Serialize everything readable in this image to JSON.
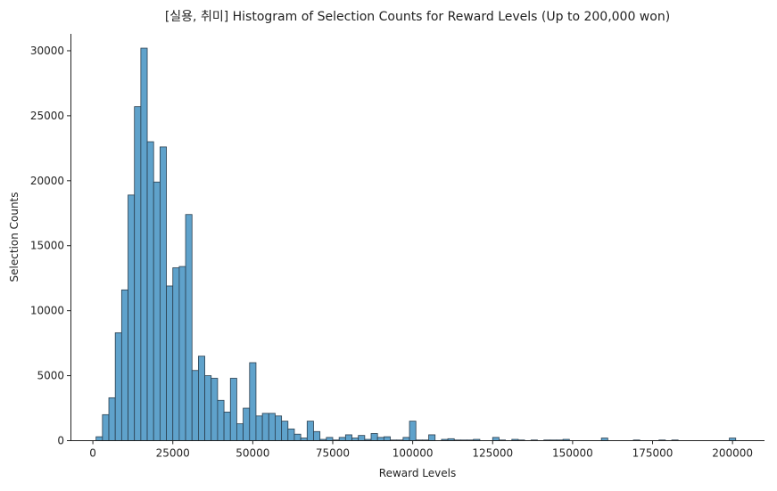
{
  "chart_data": {
    "type": "bar",
    "title": "[실용, 취미] Histogram of Selection Counts for Reward Levels (Up to 200,000 won)",
    "xlabel": "Reward Levels",
    "ylabel": "Selection Counts",
    "xlim": [
      -7000,
      210000
    ],
    "ylim": [
      0,
      31300
    ],
    "xticks": [
      0,
      25000,
      50000,
      75000,
      100000,
      125000,
      150000,
      175000,
      200000
    ],
    "yticks": [
      0,
      5000,
      10000,
      15000,
      20000,
      25000,
      30000
    ],
    "bin_start": 1000,
    "bin_width": 2000,
    "bar_color": "#5fa2cb",
    "edge_color": "#2b3f4f",
    "grid": false,
    "values": [
      300,
      2000,
      3300,
      8300,
      11600,
      18900,
      25700,
      30200,
      23000,
      19900,
      22600,
      11900,
      13300,
      13400,
      17400,
      5400,
      6500,
      5000,
      4800,
      3100,
      2200,
      4800,
      1300,
      2500,
      6000,
      1900,
      2100,
      2100,
      1900,
      1500,
      900,
      500,
      200,
      1500,
      700,
      100,
      250,
      50,
      250,
      450,
      200,
      400,
      100,
      550,
      250,
      300,
      50,
      50,
      250,
      1500,
      50,
      50,
      450,
      0,
      100,
      150,
      50,
      50,
      50,
      100,
      0,
      0,
      250,
      50,
      0,
      100,
      50,
      0,
      50,
      0,
      50,
      50,
      50,
      100,
      0,
      0,
      0,
      0,
      0,
      200,
      0,
      0,
      0,
      0,
      50,
      0,
      0,
      0,
      50,
      0,
      50,
      0,
      0,
      0,
      0,
      0,
      0,
      0,
      0,
      200
    ]
  }
}
